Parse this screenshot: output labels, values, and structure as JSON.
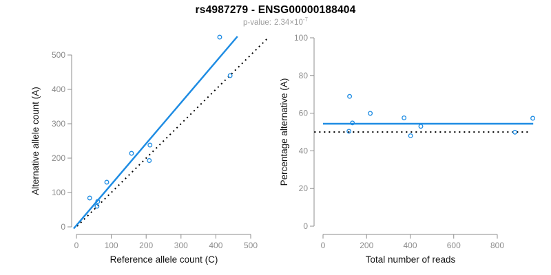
{
  "header": {
    "title": "rs4987279 - ENSG00000188404",
    "pvalue": {
      "label": "p-value:",
      "mantissa": "2.34",
      "base": "×10",
      "exponent": "-7"
    }
  },
  "colors": {
    "accent_blue": "#1E8CE3",
    "dotted_black": "#000000",
    "axis_gray": "#8C8C8C",
    "tick_label_gray": "#8C8C8C",
    "subtitle_gray": "#9C9C9C",
    "background": "#FFFFFF"
  },
  "chart_data": [
    {
      "type": "scatter",
      "xlabel": "Reference allele count (C)",
      "ylabel": "Alternative allele count (A)",
      "xlim": [
        0,
        500
      ],
      "ylim": [
        0,
        500
      ],
      "xticks": [
        0,
        100,
        200,
        300,
        400,
        500
      ],
      "yticks": [
        0,
        100,
        200,
        300,
        400,
        500
      ],
      "grid": false,
      "legend": "none",
      "points": [
        [
          38,
          84
        ],
        [
          61,
          74
        ],
        [
          59,
          60
        ],
        [
          87,
          130
        ],
        [
          158,
          214
        ],
        [
          209,
          193
        ],
        [
          211,
          238
        ],
        [
          441,
          440
        ],
        [
          411,
          552
        ]
      ],
      "lines": [
        {
          "name": "identity-line",
          "style": "dotted",
          "color": "#000000",
          "points": [
            [
              2,
              2
            ],
            [
              548,
              548
            ]
          ]
        },
        {
          "name": "regression-line",
          "style": "solid",
          "color": "#1E8CE3",
          "points": [
            [
              -8,
              -5
            ],
            [
              462,
              554
            ]
          ]
        }
      ]
    },
    {
      "type": "scatter",
      "xlabel": "Total number of reads",
      "ylabel": "Percentage alternative (A)",
      "xlim": [
        0,
        800
      ],
      "ylim": [
        0,
        100
      ],
      "xticks": [
        0,
        200,
        400,
        600,
        800
      ],
      "yticks": [
        0,
        20,
        40,
        60,
        80,
        100
      ],
      "grid": false,
      "legend": "none",
      "points": [
        [
          122,
          68.9
        ],
        [
          135,
          54.8
        ],
        [
          119,
          50.4
        ],
        [
          217,
          59.9
        ],
        [
          372,
          57.5
        ],
        [
          402,
          48.0
        ],
        [
          449,
          53.0
        ],
        [
          881,
          49.9
        ],
        [
          963,
          57.3
        ]
      ],
      "lines": [
        {
          "name": "expected-line",
          "style": "dotted",
          "color": "#000000",
          "points": [
            [
              -40,
              50
            ],
            [
              945,
              50
            ]
          ]
        },
        {
          "name": "mean-line",
          "style": "solid",
          "color": "#1E8CE3",
          "points": [
            [
              0,
              54.4
            ],
            [
              965,
              54.4
            ]
          ]
        }
      ]
    }
  ]
}
